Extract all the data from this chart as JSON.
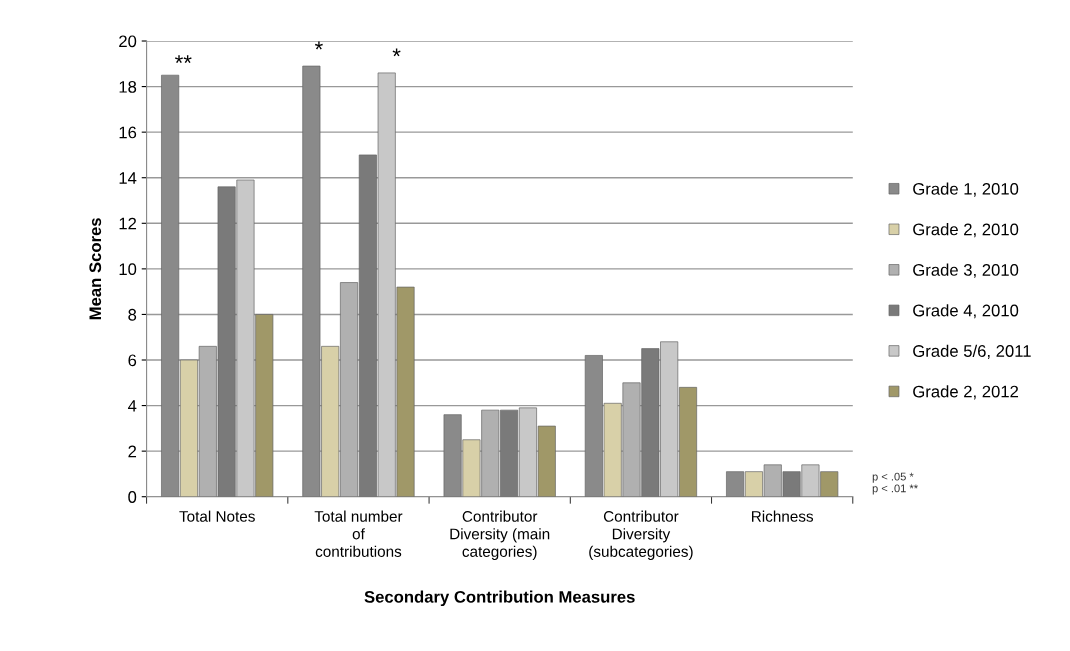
{
  "chart_data": {
    "type": "bar",
    "xlabel": "Secondary Contribution Measures",
    "ylabel": "Mean Scores",
    "categories": [
      "Total Notes",
      "Total number\nof\ncontributions",
      "Contributor\nDiversity (main\ncategories)",
      "Contributor\nDiversity\n(subcategories)",
      "Richness"
    ],
    "series": [
      {
        "name": "Grade 1, 2010",
        "color": "#8a8a8a",
        "values": [
          18.5,
          18.9,
          3.6,
          6.2,
          1.1
        ]
      },
      {
        "name": "Grade 2, 2010",
        "color": "#d8d0a8",
        "values": [
          6.0,
          6.6,
          2.5,
          4.1,
          1.1
        ]
      },
      {
        "name": "Grade 3, 2010",
        "color": "#b0b0b0",
        "values": [
          6.6,
          9.4,
          3.8,
          5.0,
          1.4
        ]
      },
      {
        "name": "Grade 4, 2010",
        "color": "#7a7a7a",
        "values": [
          13.6,
          15.0,
          3.8,
          6.5,
          1.1
        ]
      },
      {
        "name": "Grade 5/6, 2011",
        "color": "#c8c8c8",
        "values": [
          13.9,
          18.6,
          3.9,
          6.8,
          1.4
        ]
      },
      {
        "name": "Grade 2, 2012",
        "color": "#a09868",
        "values": [
          8.0,
          9.2,
          3.1,
          4.8,
          1.1
        ]
      }
    ],
    "ylim": [
      0,
      20
    ],
    "yticks": [
      0,
      2,
      4,
      6,
      8,
      10,
      12,
      14,
      16,
      18,
      20
    ],
    "grid": "y",
    "legend": "right",
    "annotations": [
      "**",
      "*",
      "*",
      "p < .05 *",
      "p < .01 **"
    ]
  }
}
